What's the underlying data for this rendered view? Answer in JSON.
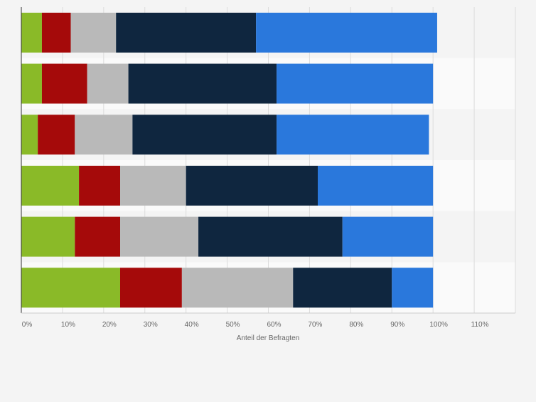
{
  "chart_data": {
    "type": "bar",
    "orientation": "horizontal",
    "stacked": true,
    "title": "",
    "xlabel": "Anteil der Befragten",
    "ylabel": "",
    "xlim": [
      0,
      120
    ],
    "x_ticks": [
      0,
      10,
      20,
      30,
      40,
      50,
      60,
      70,
      80,
      90,
      100,
      110
    ],
    "x_tick_labels": [
      "0%",
      "10%",
      "20%",
      "30%",
      "40%",
      "50%",
      "60%",
      "70%",
      "80%",
      "90%",
      "100%",
      "110%"
    ],
    "grid": true,
    "legend": "none",
    "categories": [
      "",
      "",
      "",
      "",
      "",
      ""
    ],
    "series": [
      {
        "color": "#8aba28",
        "values": [
          5,
          5,
          4,
          14,
          13,
          24
        ]
      },
      {
        "color": "#a50a0a",
        "values": [
          7,
          11,
          9,
          10,
          11,
          15
        ]
      },
      {
        "color": "#b9b9b9",
        "values": [
          11,
          10,
          14,
          16,
          19,
          27
        ]
      },
      {
        "color": "#0f263f",
        "values": [
          34,
          36,
          35,
          32,
          35,
          24
        ]
      },
      {
        "color": "#2a78dc",
        "values": [
          44,
          38,
          37,
          28,
          22,
          10
        ]
      }
    ]
  }
}
